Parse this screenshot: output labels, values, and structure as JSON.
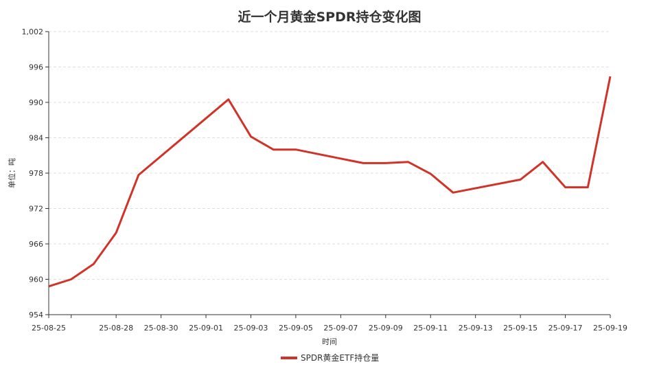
{
  "chart_data": {
    "type": "line",
    "title": "近一个月黄金SPDR持仓变化图",
    "xlabel": "时间",
    "ylabel": "单位：吨",
    "ylim": [
      954,
      1002
    ],
    "yticks": [
      "954",
      "960",
      "966",
      "972",
      "978",
      "984",
      "990",
      "996",
      "1,002"
    ],
    "xticks": [
      "25-08-25",
      "25-08-28",
      "25-08-30",
      "25-09-01",
      "25-09-03",
      "25-09-05",
      "25-09-07",
      "25-09-09",
      "25-09-11",
      "25-09-13",
      "25-09-15",
      "25-09-17",
      "25-09-19"
    ],
    "x": [
      "2025-08-25",
      "2025-08-26",
      "2025-08-27",
      "2025-08-28",
      "2025-08-29",
      "2025-09-02",
      "2025-09-03",
      "2025-09-04",
      "2025-09-05",
      "2025-09-08",
      "2025-09-09",
      "2025-09-10",
      "2025-09-11",
      "2025-09-12",
      "2025-09-15",
      "2025-09-16",
      "2025-09-17",
      "2025-09-18",
      "2025-09-19"
    ],
    "series": [
      {
        "name": "SPDR黄金ETF持仓量",
        "color": "#d03328",
        "values": [
          958.8,
          960.0,
          962.6,
          967.9,
          977.7,
          990.5,
          984.2,
          982.0,
          982.0,
          979.7,
          979.7,
          979.9,
          977.9,
          974.7,
          976.9,
          979.9,
          975.6,
          975.6,
          994.4
        ]
      }
    ],
    "grid": true,
    "legend_position": "bottom-center"
  }
}
